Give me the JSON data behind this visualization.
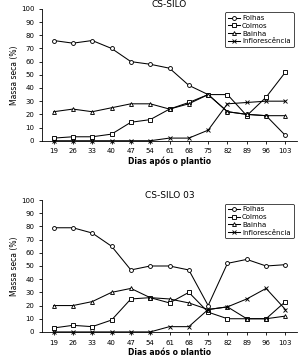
{
  "x": [
    19,
    26,
    33,
    40,
    47,
    54,
    61,
    68,
    75,
    82,
    89,
    96,
    103
  ],
  "top": {
    "title": "CS-SILO",
    "Folhas": [
      76,
      74,
      76,
      70,
      60,
      58,
      55,
      42,
      35,
      22,
      20,
      19,
      4
    ],
    "Colmos": [
      2,
      3,
      3,
      5,
      14,
      16,
      24,
      29,
      35,
      35,
      19,
      33,
      52
    ],
    "Bainha": [
      22,
      24,
      22,
      25,
      28,
      28,
      24,
      28,
      35,
      22,
      20,
      19,
      19
    ],
    "Inflorescencia": [
      0,
      0,
      0,
      0,
      0,
      0,
      2,
      2,
      8,
      28,
      29,
      30,
      30
    ]
  },
  "bottom": {
    "title": "CS-SILO 03",
    "Folhas": [
      79,
      79,
      75,
      65,
      47,
      50,
      50,
      47,
      20,
      52,
      55,
      50,
      51
    ],
    "Colmos": [
      3,
      5,
      4,
      9,
      25,
      26,
      22,
      30,
      15,
      10,
      10,
      10,
      23
    ],
    "Bainha": [
      20,
      20,
      23,
      30,
      33,
      26,
      25,
      22,
      17,
      19,
      10,
      10,
      12
    ],
    "Inflorescencia": [
      0,
      0,
      0,
      0,
      0,
      0,
      4,
      4,
      17,
      19,
      25,
      33,
      17
    ]
  },
  "ylabel": "Massa seca (%)",
  "xlabel": "Dias após o plantio",
  "ylim": [
    0,
    100
  ],
  "yticks": [
    0,
    10,
    20,
    30,
    40,
    50,
    60,
    70,
    80,
    90,
    100
  ],
  "legend_labels": [
    "Folhas",
    "Colmos",
    "Bainha",
    "Inflorescência"
  ],
  "markers": [
    "o",
    "s",
    "^",
    "x"
  ],
  "line_color": "black",
  "title_fontsize": 6.5,
  "axis_fontsize": 5.5,
  "tick_fontsize": 5,
  "legend_fontsize": 5
}
